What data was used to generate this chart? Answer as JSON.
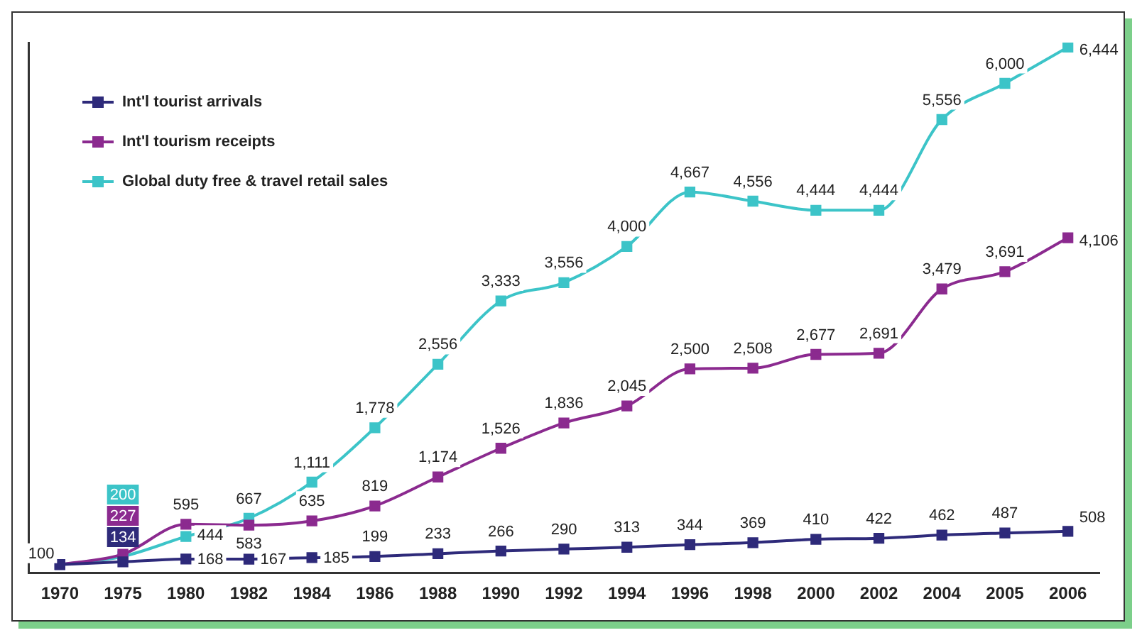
{
  "chart_data": {
    "type": "line",
    "categories": [
      "1970",
      "1975",
      "1980",
      "1982",
      "1984",
      "1986",
      "1988",
      "1990",
      "1992",
      "1994",
      "1996",
      "1998",
      "2000",
      "2002",
      "2004",
      "2005",
      "2006"
    ],
    "series": [
      {
        "name": "Int'l tourist arrivals",
        "color": "#2e2a7a",
        "values": [
          100,
          134,
          168,
          167,
          185,
          199,
          233,
          266,
          290,
          313,
          344,
          369,
          410,
          422,
          462,
          487,
          508
        ],
        "value_labels": [
          null,
          "134",
          "168",
          "167",
          "185",
          "199",
          "233",
          "266",
          "290",
          "313",
          "344",
          "369",
          "410",
          "422",
          "462",
          "487",
          "508"
        ]
      },
      {
        "name": "Int'l tourism receipts",
        "color": "#8b2a8f",
        "values": [
          100,
          227,
          595,
          583,
          635,
          819,
          1174,
          1526,
          1836,
          2045,
          2500,
          2508,
          2677,
          2691,
          3479,
          3691,
          4106
        ],
        "value_labels": [
          null,
          "227",
          "595",
          "583",
          "635",
          "819",
          "1,174",
          "1,526",
          "1,836",
          "2,045",
          "2,500",
          "2,508",
          "2,677",
          "2,691",
          "3,479",
          "3,691",
          "4,106"
        ]
      },
      {
        "name": "Global duty free & travel retail sales",
        "color": "#3cc4c8",
        "values": [
          100,
          200,
          444,
          667,
          1111,
          1778,
          2556,
          3333,
          3556,
          4000,
          4667,
          4556,
          4444,
          4444,
          5556,
          6000,
          6444
        ],
        "value_labels": [
          "100",
          "200",
          "444",
          "667",
          "1,111",
          "1,778",
          "2,556",
          "3,333",
          "3,556",
          "4,000",
          "4,667",
          "4,556",
          "4,444",
          "4,444",
          "5,556",
          "6,000",
          "6,444"
        ]
      }
    ],
    "ylim": [
      0,
      6500
    ],
    "tick_labels": "x",
    "grid": false,
    "legend": "top left",
    "marker": "square",
    "line_style": "solid"
  }
}
